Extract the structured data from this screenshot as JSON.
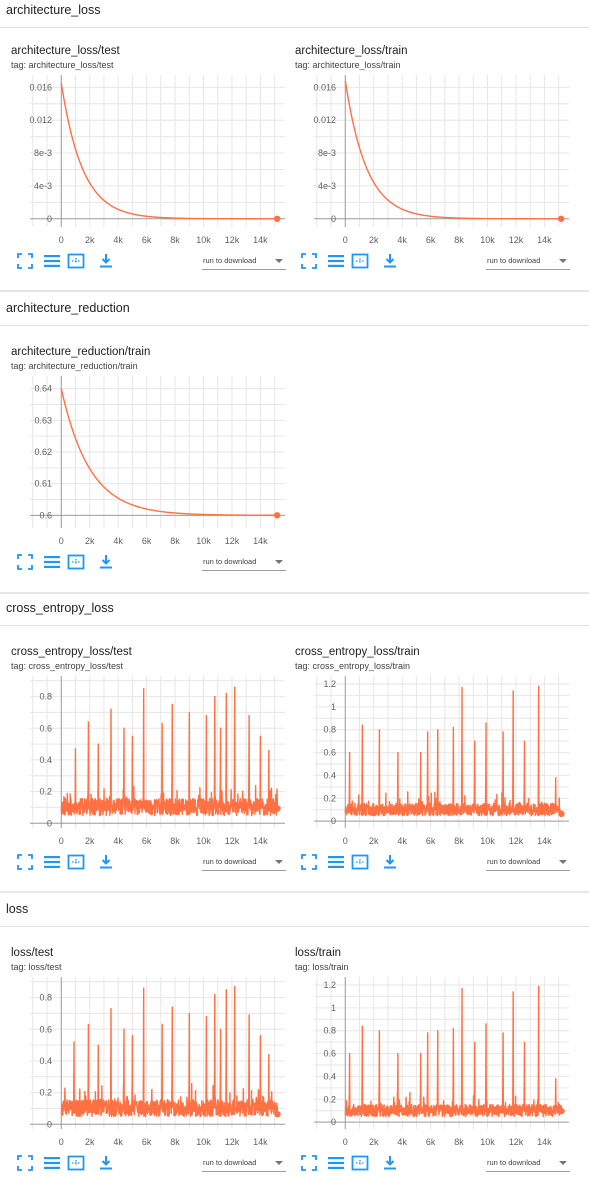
{
  "sections": [
    {
      "title": "architecture_loss"
    },
    {
      "title": "architecture_reduction"
    },
    {
      "title": "cross_entropy_loss"
    },
    {
      "title": "loss"
    }
  ],
  "toolbar": {
    "run_to_download": "run to download",
    "icons": [
      "fullscreen-icon",
      "lines-icon",
      "fit-domain-icon",
      "download-icon"
    ],
    "accent_color": "#2196f3"
  },
  "series_color": "#ff7043",
  "chart_data": [
    {
      "type": "line",
      "title": "architecture_loss/test",
      "subtitle": "tag: architecture_loss/test",
      "x_ticks": [
        "0",
        "2k",
        "4k",
        "6k",
        "8k",
        "10k",
        "12k",
        "14k"
      ],
      "y_ticks": [
        "0",
        "4e-3",
        "8e-3",
        "0.012",
        "0.016"
      ],
      "xlim": [
        -2200,
        15800
      ],
      "ylim": [
        -0.001,
        0.0175
      ],
      "grid": true,
      "series": [
        {
          "shape": "exp",
          "start": 0.0165,
          "end": 0,
          "tau": 1500,
          "x_end": 15200
        }
      ]
    },
    {
      "type": "line",
      "title": "architecture_loss/train",
      "subtitle": "tag: architecture_loss/train",
      "x_ticks": [
        "0",
        "2k",
        "4k",
        "6k",
        "8k",
        "10k",
        "12k",
        "14k"
      ],
      "y_ticks": [
        "0",
        "4e-3",
        "8e-3",
        "0.012",
        "0.016"
      ],
      "xlim": [
        -2200,
        15800
      ],
      "ylim": [
        -0.001,
        0.0175
      ],
      "grid": true,
      "series": [
        {
          "shape": "exp",
          "start": 0.0168,
          "end": 0,
          "tau": 1500,
          "x_end": 15200
        }
      ]
    },
    {
      "type": "line",
      "title": "architecture_reduction/train",
      "subtitle": "tag: architecture_reduction/train",
      "x_ticks": [
        "0",
        "2k",
        "4k",
        "6k",
        "8k",
        "10k",
        "12k",
        "14k"
      ],
      "y_ticks": [
        "0.6",
        "0.61",
        "0.62",
        "0.63",
        "0.64"
      ],
      "xlim": [
        -2200,
        15800
      ],
      "ylim": [
        0.596,
        0.644
      ],
      "grid": true,
      "series": [
        {
          "shape": "exp",
          "start": 0.64,
          "end": 0.6,
          "tau": 2000,
          "x_end": 15200
        }
      ]
    },
    {
      "type": "line",
      "title": "cross_entropy_loss/test",
      "subtitle": "tag: cross_entropy_loss/test",
      "x_ticks": [
        "0",
        "2k",
        "4k",
        "6k",
        "8k",
        "10k",
        "12k",
        "14k"
      ],
      "y_ticks": [
        "0",
        "0.2",
        "0.4",
        "0.6",
        "0.8"
      ],
      "xlim": [
        -2200,
        15800
      ],
      "ylim": [
        -0.03,
        0.93
      ],
      "grid": true,
      "series": [
        {
          "shape": "noisy",
          "base": 0.12,
          "seed": 11,
          "x_end": 15200,
          "spikes": [
            [
              1000,
              0.47
            ],
            [
              1900,
              0.64
            ],
            [
              2600,
              0.5
            ],
            [
              3500,
              0.72
            ],
            [
              4400,
              0.6
            ],
            [
              5000,
              0.55
            ],
            [
              5800,
              0.85
            ],
            [
              7100,
              0.63
            ],
            [
              7800,
              0.75
            ],
            [
              9000,
              0.7
            ],
            [
              10200,
              0.68
            ],
            [
              10800,
              0.8
            ],
            [
              11200,
              0.6
            ],
            [
              11600,
              0.82
            ],
            [
              12200,
              0.86
            ],
            [
              13200,
              0.68
            ],
            [
              14000,
              0.55
            ],
            [
              14600,
              0.46
            ]
          ]
        }
      ]
    },
    {
      "type": "line",
      "title": "cross_entropy_loss/train",
      "subtitle": "tag: cross_entropy_loss/train",
      "x_ticks": [
        "0",
        "2k",
        "4k",
        "6k",
        "8k",
        "10k",
        "12k",
        "14k"
      ],
      "y_ticks": [
        "0",
        "0.2",
        "0.4",
        "0.6",
        "0.8",
        "1",
        "1.2"
      ],
      "xlim": [
        -2200,
        15800
      ],
      "ylim": [
        -0.06,
        1.27
      ],
      "grid": true,
      "series": [
        {
          "shape": "noisy",
          "base": 0.12,
          "seed": 23,
          "x_end": 15200,
          "spikes": [
            [
              300,
              0.6
            ],
            [
              1200,
              0.84
            ],
            [
              2400,
              0.8
            ],
            [
              3700,
              0.6
            ],
            [
              5300,
              0.6
            ],
            [
              5800,
              0.78
            ],
            [
              6500,
              0.8
            ],
            [
              7600,
              0.82
            ],
            [
              8200,
              1.17
            ],
            [
              9100,
              0.7
            ],
            [
              9900,
              0.86
            ],
            [
              11100,
              0.78
            ],
            [
              11800,
              1.14
            ],
            [
              12600,
              0.7
            ],
            [
              13600,
              1.18
            ],
            [
              14800,
              0.38
            ]
          ]
        }
      ]
    },
    {
      "type": "line",
      "title": "loss/test",
      "subtitle": "tag: loss/test",
      "x_ticks": [
        "0",
        "2k",
        "4k",
        "6k",
        "8k",
        "10k",
        "12k",
        "14k"
      ],
      "y_ticks": [
        "0",
        "0.2",
        "0.4",
        "0.6",
        "0.8"
      ],
      "xlim": [
        -2200,
        15800
      ],
      "ylim": [
        -0.03,
        0.93
      ],
      "grid": true,
      "series": [
        {
          "shape": "noisy",
          "base": 0.12,
          "seed": 37,
          "x_end": 15200,
          "spikes": [
            [
              900,
              0.52
            ],
            [
              1900,
              0.63
            ],
            [
              2600,
              0.5
            ],
            [
              3500,
              0.73
            ],
            [
              4400,
              0.6
            ],
            [
              5000,
              0.56
            ],
            [
              5800,
              0.86
            ],
            [
              7100,
              0.63
            ],
            [
              7800,
              0.74
            ],
            [
              9000,
              0.7
            ],
            [
              10200,
              0.68
            ],
            [
              10800,
              0.82
            ],
            [
              11200,
              0.6
            ],
            [
              11600,
              0.85
            ],
            [
              12200,
              0.87
            ],
            [
              13200,
              0.69
            ],
            [
              14000,
              0.56
            ],
            [
              14600,
              0.44
            ]
          ]
        }
      ]
    },
    {
      "type": "line",
      "title": "loss/train",
      "subtitle": "tag: loss/train",
      "x_ticks": [
        "0",
        "2k",
        "4k",
        "6k",
        "8k",
        "10k",
        "12k",
        "14k"
      ],
      "y_ticks": [
        "0",
        "0.2",
        "0.4",
        "0.6",
        "0.8",
        "1",
        "1.2"
      ],
      "xlim": [
        -2200,
        15800
      ],
      "ylim": [
        -0.06,
        1.27
      ],
      "grid": true,
      "series": [
        {
          "shape": "noisy",
          "base": 0.12,
          "seed": 53,
          "x_end": 15200,
          "spikes": [
            [
              300,
              0.6
            ],
            [
              1200,
              0.84
            ],
            [
              2400,
              0.8
            ],
            [
              3700,
              0.6
            ],
            [
              5300,
              0.6
            ],
            [
              5800,
              0.78
            ],
            [
              6500,
              0.8
            ],
            [
              7600,
              0.82
            ],
            [
              8200,
              1.17
            ],
            [
              9100,
              0.7
            ],
            [
              9900,
              0.86
            ],
            [
              11100,
              0.78
            ],
            [
              11800,
              1.14
            ],
            [
              12600,
              0.7
            ],
            [
              13600,
              1.19
            ],
            [
              14800,
              0.38
            ]
          ]
        }
      ]
    }
  ]
}
